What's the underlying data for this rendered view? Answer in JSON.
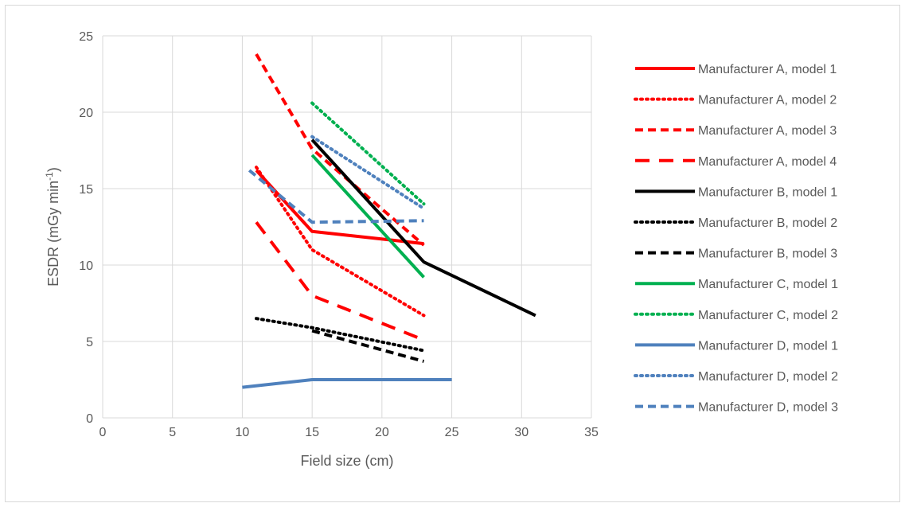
{
  "chart_data": {
    "type": "line",
    "title": "",
    "xlabel": "Field size (cm)",
    "ylabel": "ESDR (mGy min",
    "ylabel_sup": "-1",
    "ylabel_end": ")",
    "xlim": [
      0,
      35
    ],
    "ylim": [
      0,
      25
    ],
    "x_ticks": [
      0,
      5,
      10,
      15,
      20,
      25,
      30,
      35
    ],
    "y_ticks": [
      0,
      5,
      10,
      15,
      20,
      25
    ],
    "grid": true,
    "legend_position": "right",
    "series": [
      {
        "name": "Manufacturer A, model 1",
        "color": "#ff0000",
        "dash": "solid",
        "x": [
          11,
          15,
          23
        ],
        "y": [
          16.2,
          12.2,
          11.4
        ]
      },
      {
        "name": "Manufacturer A, model 2",
        "color": "#ff0000",
        "dash": "dot",
        "x": [
          11,
          15,
          23
        ],
        "y": [
          16.4,
          11.0,
          6.7
        ]
      },
      {
        "name": "Manufacturer A, model 3",
        "color": "#ff0000",
        "dash": "dash",
        "x": [
          11,
          15,
          23
        ],
        "y": [
          23.8,
          17.6,
          11.3
        ]
      },
      {
        "name": "Manufacturer A, model 4",
        "color": "#ff0000",
        "dash": "longdash",
        "x": [
          11,
          15,
          23
        ],
        "y": [
          12.8,
          8.0,
          5.1
        ]
      },
      {
        "name": "Manufacturer B, model 1",
        "color": "#000000",
        "dash": "solid",
        "x": [
          15,
          23,
          31
        ],
        "y": [
          18.2,
          10.2,
          6.7
        ]
      },
      {
        "name": "Manufacturer B, model 2",
        "color": "#000000",
        "dash": "dot",
        "x": [
          11,
          15,
          23
        ],
        "y": [
          6.5,
          5.9,
          4.4
        ]
      },
      {
        "name": "Manufacturer B, model 3",
        "color": "#000000",
        "dash": "dash",
        "x": [
          15,
          23
        ],
        "y": [
          5.7,
          3.7
        ]
      },
      {
        "name": "Manufacturer C, model 1",
        "color": "#00b050",
        "dash": "solid",
        "x": [
          15,
          23
        ],
        "y": [
          17.2,
          9.2
        ]
      },
      {
        "name": "Manufacturer C, model 2",
        "color": "#00b050",
        "dash": "dot",
        "x": [
          15,
          23
        ],
        "y": [
          20.6,
          14.0
        ]
      },
      {
        "name": "Manufacturer D, model 1",
        "color": "#4f81bd",
        "dash": "solid",
        "x": [
          10,
          15,
          25
        ],
        "y": [
          2.0,
          2.5,
          2.5
        ]
      },
      {
        "name": "Manufacturer D, model 2",
        "color": "#4f81bd",
        "dash": "dot",
        "x": [
          15,
          23
        ],
        "y": [
          18.4,
          13.7
        ]
      },
      {
        "name": "Manufacturer D, model 3",
        "color": "#4f81bd",
        "dash": "dash",
        "x": [
          10.5,
          15,
          23
        ],
        "y": [
          16.2,
          12.8,
          12.9
        ]
      }
    ]
  }
}
